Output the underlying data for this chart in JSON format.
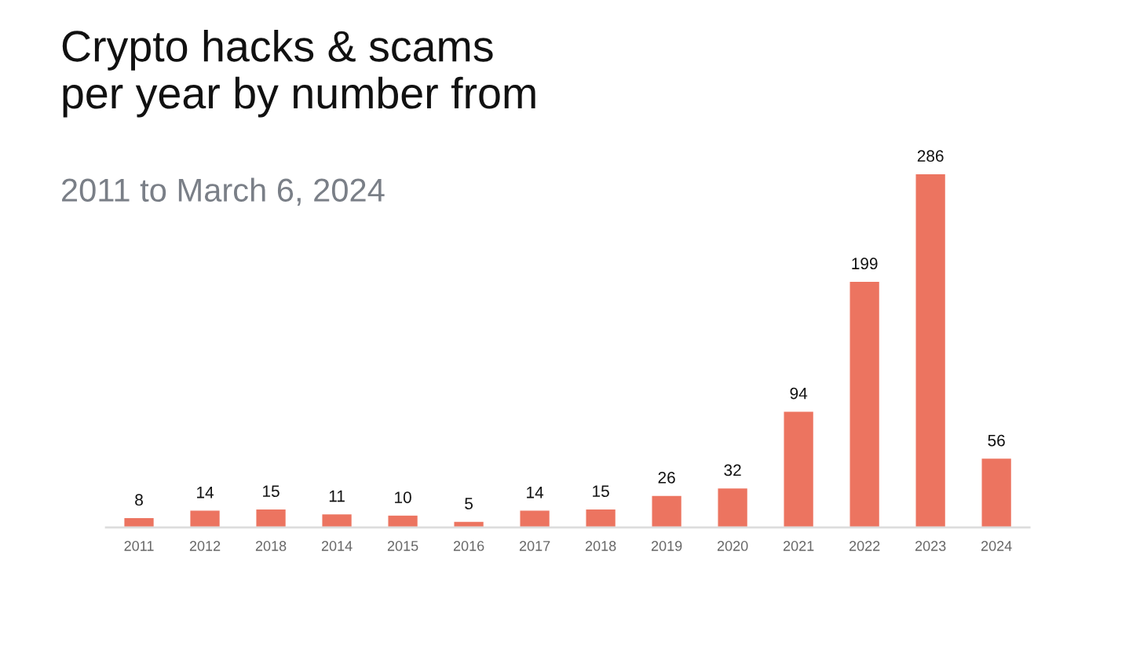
{
  "chart_data": {
    "type": "bar",
    "title": "Crypto hacks & scams\nper year by number from",
    "subtitle": "2011 to March 6, 2024",
    "categories": [
      "2011",
      "2012",
      "2018",
      "2014",
      "2015",
      "2016",
      "2017",
      "2018",
      "2019",
      "2020",
      "2021",
      "2022",
      "2023",
      "2024"
    ],
    "values": [
      8,
      14,
      15,
      11,
      10,
      5,
      14,
      15,
      26,
      32,
      94,
      199,
      286,
      56
    ],
    "color": "#ec7460",
    "data_labels": true,
    "grid": false,
    "legend": false
  }
}
